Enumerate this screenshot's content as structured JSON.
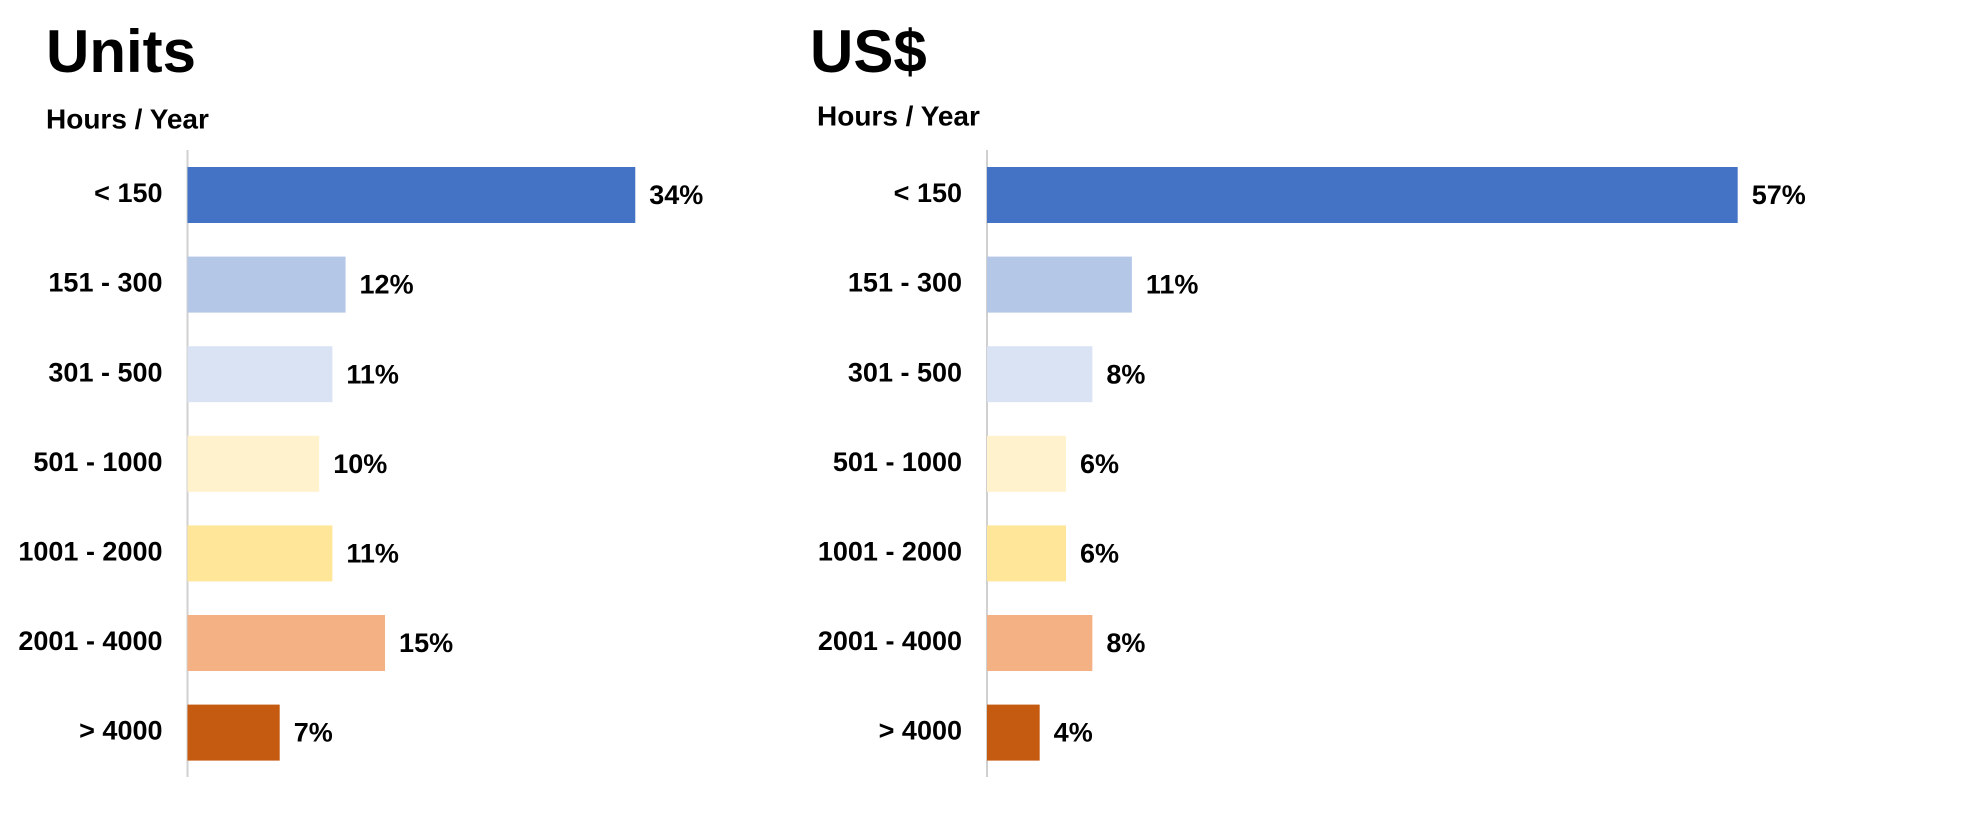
{
  "chart_data": [
    {
      "type": "bar",
      "horizontal": true,
      "title": "Units",
      "subtitle": "Hours / Year",
      "categories": [
        "< 150",
        "151 - 300",
        "301 - 500",
        "501 - 1000",
        "1001 - 2000",
        "2001 - 4000",
        "> 4000"
      ],
      "values": [
        34,
        12,
        11,
        10,
        11,
        15,
        7
      ],
      "value_labels": [
        "34%",
        "12%",
        "11%",
        "10%",
        "11%",
        "15%",
        "7%"
      ],
      "colors": [
        "#4472c4",
        "#b4c7e7",
        "#dae3f3",
        "#fff2cc",
        "#ffe699",
        "#f4b183",
        "#c55a11"
      ]
    },
    {
      "type": "bar",
      "horizontal": true,
      "title": "US$",
      "subtitle": "Hours / Year",
      "categories": [
        "< 150",
        "151 - 300",
        "301 - 500",
        "501 - 1000",
        "1001 - 2000",
        "2001 - 4000",
        "> 4000"
      ],
      "values": [
        57,
        11,
        8,
        6,
        6,
        8,
        4
      ],
      "value_labels": [
        "57%",
        "11%",
        "8%",
        "6%",
        "6%",
        "8%",
        "4%"
      ],
      "colors": [
        "#4472c4",
        "#b4c7e7",
        "#dae3f3",
        "#fff2cc",
        "#ffe699",
        "#f4b183",
        "#c55a11"
      ]
    }
  ]
}
